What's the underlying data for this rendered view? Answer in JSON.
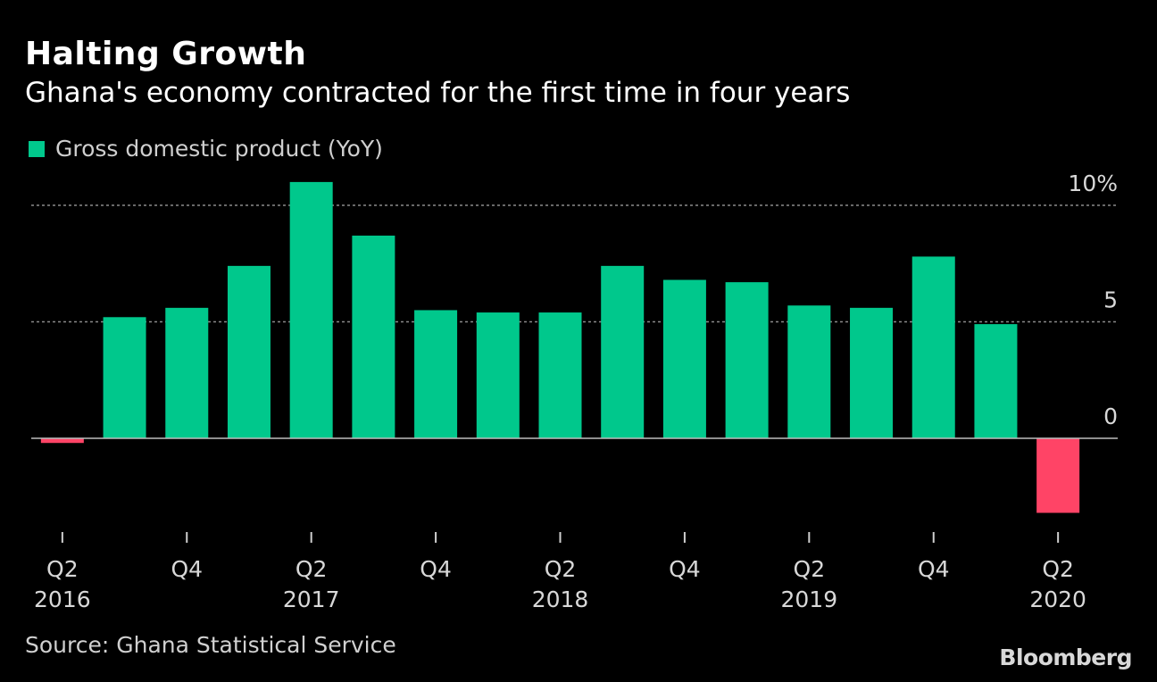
{
  "header": {
    "title": "Halting Growth",
    "subtitle": "Ghana's economy contracted for the first time in four years"
  },
  "legend": {
    "label": "Gross domestic product (YoY)"
  },
  "footer": {
    "source": "Source: Ghana Statistical Service",
    "brand": "Bloomberg"
  },
  "colors": {
    "positive": "#00c88c",
    "negative": "#ff4466",
    "background": "#000000"
  },
  "chart_data": {
    "type": "bar",
    "title": "Halting Growth",
    "subtitle": "Ghana's economy contracted for the first time in four years",
    "xlabel": "",
    "ylabel": "",
    "categories": [
      "Q2 2016",
      "Q3 2016",
      "Q4 2016",
      "Q1 2017",
      "Q2 2017",
      "Q3 2017",
      "Q4 2017",
      "Q1 2018",
      "Q2 2018",
      "Q3 2018",
      "Q4 2018",
      "Q1 2019",
      "Q2 2019",
      "Q3 2019",
      "Q4 2019",
      "Q1 2020",
      "Q2 2020"
    ],
    "series": [
      {
        "name": "Gross domestic product (YoY)",
        "values": [
          -0.2,
          5.2,
          5.6,
          7.4,
          11.0,
          8.7,
          5.5,
          5.4,
          5.4,
          7.4,
          6.8,
          6.7,
          5.7,
          5.6,
          7.8,
          4.9,
          -3.2
        ]
      }
    ],
    "ylim": [
      -4.2,
      11.5
    ],
    "y_ticks": [
      {
        "value": 10,
        "label": "10%"
      },
      {
        "value": 5,
        "label": "5"
      },
      {
        "value": 0,
        "label": "0"
      }
    ],
    "x_ticks": [
      {
        "index": 0,
        "line1": "Q2",
        "line2": "2016"
      },
      {
        "index": 2,
        "line1": "Q4",
        "line2": ""
      },
      {
        "index": 4,
        "line1": "Q2",
        "line2": "2017"
      },
      {
        "index": 6,
        "line1": "Q4",
        "line2": ""
      },
      {
        "index": 8,
        "line1": "Q2",
        "line2": "2018"
      },
      {
        "index": 10,
        "line1": "Q4",
        "line2": ""
      },
      {
        "index": 12,
        "line1": "Q2",
        "line2": "2019"
      },
      {
        "index": 14,
        "line1": "Q4",
        "line2": ""
      },
      {
        "index": 16,
        "line1": "Q2",
        "line2": "2020"
      }
    ],
    "grid": true,
    "legend_position": "top-left"
  }
}
